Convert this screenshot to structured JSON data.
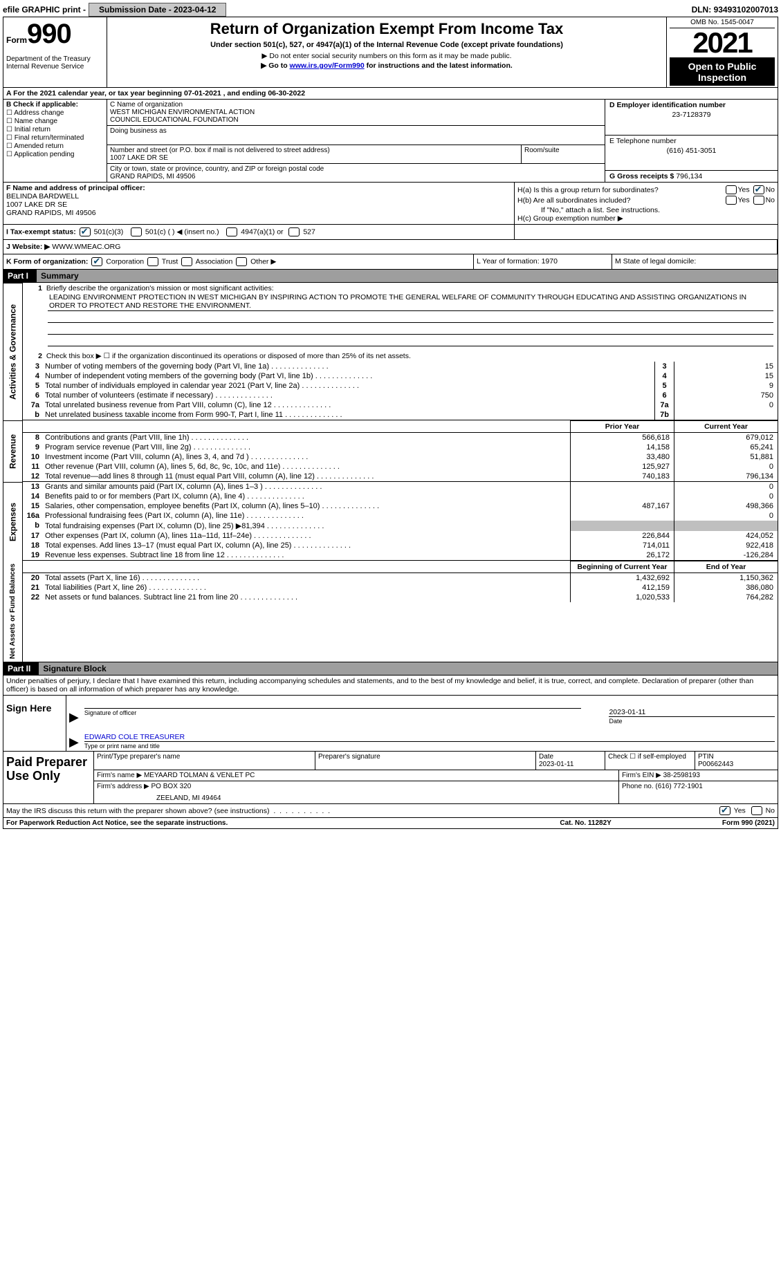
{
  "topbar": {
    "efile": "efile GRAPHIC print -",
    "submission_label": "Submission Date - ",
    "submission_date": "2023-04-12",
    "dln_label": "DLN: ",
    "dln": "93493102007013"
  },
  "header": {
    "form_label": "Form",
    "form_number": "990",
    "dept": "Department of the Treasury Internal Revenue Service",
    "title": "Return of Organization Exempt From Income Tax",
    "subtitle": "Under section 501(c), 527, or 4947(a)(1) of the Internal Revenue Code (except private foundations)",
    "note1": "▶ Do not enter social security numbers on this form as it may be made public.",
    "note2_prefix": "▶ Go to ",
    "note2_link": "www.irs.gov/Form990",
    "note2_suffix": " for instructions and the latest information.",
    "omb": "OMB No. 1545-0047",
    "year": "2021",
    "open": "Open to Public Inspection"
  },
  "rowA": "A For the 2021 calendar year, or tax year beginning 07-01-2021   , and ending 06-30-2022",
  "boxB": {
    "label": "B Check if applicable:",
    "items": [
      "Address change",
      "Name change",
      "Initial return",
      "Final return/terminated",
      "Amended return",
      "Application pending"
    ]
  },
  "boxC": {
    "name_label": "C Name of organization",
    "name1": "WEST MICHIGAN ENVIRONMENTAL ACTION",
    "name2": "COUNCIL EDUCATIONAL FOUNDATION",
    "dba_label": "Doing business as",
    "street_label": "Number and street (or P.O. box if mail is not delivered to street address)",
    "street": "1007 LAKE DR SE",
    "room_label": "Room/suite",
    "city_label": "City or town, state or province, country, and ZIP or foreign postal code",
    "city": "GRAND RAPIDS, MI  49506"
  },
  "boxD": {
    "label": "D Employer identification number",
    "val": "23-7128379"
  },
  "boxE": {
    "label": "E Telephone number",
    "val": "(616) 451-3051"
  },
  "boxG": {
    "label": "G Gross receipts $ ",
    "val": "796,134"
  },
  "boxF": {
    "label": "F Name and address of principal officer:",
    "name": "BELINDA BARDWELL",
    "street": "1007 LAKE DR SE",
    "city": "GRAND RAPIDS, MI  49506"
  },
  "boxH": {
    "a_label": "H(a)  Is this a group return for subordinates?",
    "b_label": "H(b)  Are all subordinates included?",
    "b_note": "If \"No,\" attach a list. See instructions.",
    "c_label": "H(c)  Group exemption number ▶"
  },
  "rowI": {
    "label": "I   Tax-exempt status:",
    "opts": [
      "501(c)(3)",
      "501(c) (  ) ◀ (insert no.)",
      "4947(a)(1) or",
      "527"
    ]
  },
  "rowJ": {
    "label": "J   Website: ▶",
    "val": "  WWW.WMEAC.ORG"
  },
  "rowK": {
    "label": "K Form of organization:",
    "opts": [
      "Corporation",
      "Trust",
      "Association",
      "Other ▶"
    ],
    "L": "L Year of formation: 1970",
    "M": "M State of legal domicile:"
  },
  "part1": {
    "label": "Part I",
    "title": "Summary"
  },
  "activities": {
    "vlabel": "Activities & Governance",
    "q1_label": "1",
    "q1_text": "Briefly describe the organization's mission or most significant activities:",
    "mission": "LEADING ENVIRONMENT PROTECTION IN WEST MICHIGAN BY INSPIRING ACTION TO PROMOTE THE GENERAL WELFARE OF COMMUNITY THROUGH EDUCATING AND ASSISTING ORGANIZATIONS IN ORDER TO PROTECT AND RESTORE THE ENVIRONMENT.",
    "q2_label": "2",
    "q2_text": "Check this box ▶ ☐ if the organization discontinued its operations or disposed of more than 25% of its net assets.",
    "rows": [
      {
        "n": "3",
        "t": "Number of voting members of the governing body (Part VI, line 1a)",
        "box": "3",
        "v": "15"
      },
      {
        "n": "4",
        "t": "Number of independent voting members of the governing body (Part VI, line 1b)",
        "box": "4",
        "v": "15"
      },
      {
        "n": "5",
        "t": "Total number of individuals employed in calendar year 2021 (Part V, line 2a)",
        "box": "5",
        "v": "9"
      },
      {
        "n": "6",
        "t": "Total number of volunteers (estimate if necessary)",
        "box": "6",
        "v": "750"
      },
      {
        "n": "7a",
        "t": "Total unrelated business revenue from Part VIII, column (C), line 12",
        "box": "7a",
        "v": "0"
      },
      {
        "n": "b",
        "t": "Net unrelated business taxable income from Form 990-T, Part I, line 11",
        "box": "7b",
        "v": ""
      }
    ]
  },
  "revenue": {
    "vlabel": "Revenue",
    "hdr_prior": "Prior Year",
    "hdr_current": "Current Year",
    "rows": [
      {
        "n": "8",
        "t": "Contributions and grants (Part VIII, line 1h)",
        "p": "566,618",
        "c": "679,012"
      },
      {
        "n": "9",
        "t": "Program service revenue (Part VIII, line 2g)",
        "p": "14,158",
        "c": "65,241"
      },
      {
        "n": "10",
        "t": "Investment income (Part VIII, column (A), lines 3, 4, and 7d )",
        "p": "33,480",
        "c": "51,881"
      },
      {
        "n": "11",
        "t": "Other revenue (Part VIII, column (A), lines 5, 6d, 8c, 9c, 10c, and 11e)",
        "p": "125,927",
        "c": "0"
      },
      {
        "n": "12",
        "t": "Total revenue—add lines 8 through 11 (must equal Part VIII, column (A), line 12)",
        "p": "740,183",
        "c": "796,134"
      }
    ]
  },
  "expenses": {
    "vlabel": "Expenses",
    "rows": [
      {
        "n": "13",
        "t": "Grants and similar amounts paid (Part IX, column (A), lines 1–3 )",
        "p": "",
        "c": "0"
      },
      {
        "n": "14",
        "t": "Benefits paid to or for members (Part IX, column (A), line 4)",
        "p": "",
        "c": "0"
      },
      {
        "n": "15",
        "t": "Salaries, other compensation, employee benefits (Part IX, column (A), lines 5–10)",
        "p": "487,167",
        "c": "498,366"
      },
      {
        "n": "16a",
        "t": "Professional fundraising fees (Part IX, column (A), line 11e)",
        "p": "",
        "c": "0"
      },
      {
        "n": "b",
        "t": "Total fundraising expenses (Part IX, column (D), line 25) ▶81,394",
        "p": "shade",
        "c": "shade"
      },
      {
        "n": "17",
        "t": "Other expenses (Part IX, column (A), lines 11a–11d, 11f–24e)",
        "p": "226,844",
        "c": "424,052"
      },
      {
        "n": "18",
        "t": "Total expenses. Add lines 13–17 (must equal Part IX, column (A), line 25)",
        "p": "714,011",
        "c": "922,418"
      },
      {
        "n": "19",
        "t": "Revenue less expenses. Subtract line 18 from line 12",
        "p": "26,172",
        "c": "-126,284"
      }
    ]
  },
  "netassets": {
    "vlabel": "Net Assets or Fund Balances",
    "hdr_left": "Beginning of Current Year",
    "hdr_right": "End of Year",
    "rows": [
      {
        "n": "20",
        "t": "Total assets (Part X, line 16)",
        "p": "1,432,692",
        "c": "1,150,362"
      },
      {
        "n": "21",
        "t": "Total liabilities (Part X, line 26)",
        "p": "412,159",
        "c": "386,080"
      },
      {
        "n": "22",
        "t": "Net assets or fund balances. Subtract line 21 from line 20",
        "p": "1,020,533",
        "c": "764,282"
      }
    ]
  },
  "part2": {
    "label": "Part II",
    "title": "Signature Block"
  },
  "penalty": "Under penalties of perjury, I declare that I have examined this return, including accompanying schedules and statements, and to the best of my knowledge and belief, it is true, correct, and complete. Declaration of preparer (other than officer) is based on all information of which preparer has any knowledge.",
  "sign": {
    "left": "Sign Here",
    "sig_of_officer": "Signature of officer",
    "date": "2023-01-11",
    "date_label": "Date",
    "name": "EDWARD COLE  TREASURER",
    "name_label": "Type or print name and title"
  },
  "prep": {
    "left": "Paid Preparer Use Only",
    "h1": "Print/Type preparer's name",
    "h2": "Preparer's signature",
    "h3_label": "Date",
    "h3": "2023-01-11",
    "h4": "Check ☐ if self-employed",
    "h5_label": "PTIN",
    "h5": "P00662443",
    "firm_name_label": "Firm's name      ▶ ",
    "firm_name": "MEYAARD TOLMAN & VENLET PC",
    "firm_ein_label": "Firm's EIN ▶ ",
    "firm_ein": "38-2598193",
    "firm_addr_label": "Firm's address ▶ ",
    "firm_addr1": "PO BOX 320",
    "firm_addr2": "ZEELAND, MI  49464",
    "phone_label": "Phone no. ",
    "phone": "(616) 772-1901"
  },
  "footer_q": "May the IRS discuss this return with the preparer shown above? (see instructions)",
  "bottom": {
    "left": "For Paperwork Reduction Act Notice, see the separate instructions.",
    "mid": "Cat. No. 11282Y",
    "right": "Form 990 (2021)"
  }
}
